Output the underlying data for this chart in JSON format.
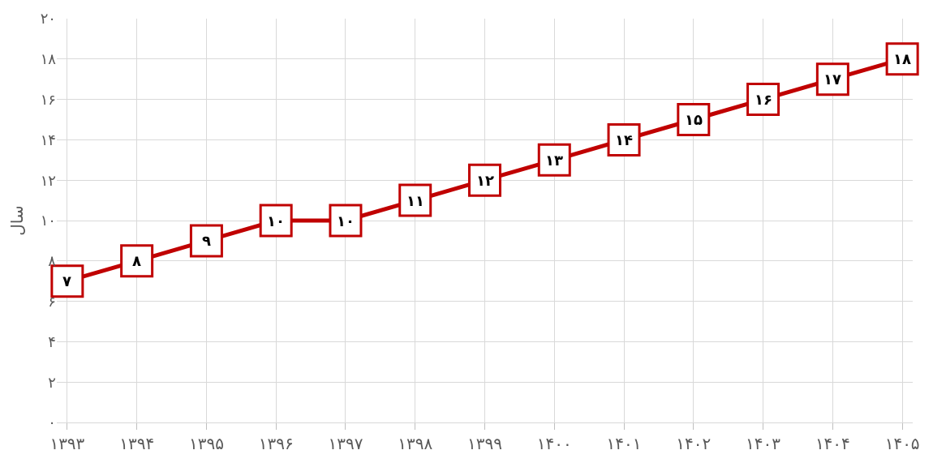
{
  "chart_data": {
    "type": "line",
    "ylabel": "سال",
    "categories": [
      "۱۳۹۳",
      "۱۳۹۴",
      "۱۳۹۵",
      "۱۳۹۶",
      "۱۳۹۷",
      "۱۳۹۸",
      "۱۳۹۹",
      "۱۴۰۰",
      "۱۴۰۱",
      "۱۴۰۲",
      "۱۴۰۳",
      "۱۴۰۴",
      "۱۴۰۵"
    ],
    "series": [
      {
        "color": "#c00000",
        "values": [
          7,
          8,
          9,
          10,
          10,
          11,
          12,
          13,
          14,
          15,
          16,
          17,
          18
        ],
        "value_labels": [
          "۷",
          "۸",
          "۹",
          "۱۰",
          "۱۰",
          "۱۱",
          "۱۲",
          "۱۳",
          "۱۴",
          "۱۵",
          "۱۶",
          "۱۷",
          "۱۸"
        ]
      }
    ],
    "ylim": [
      0,
      20
    ],
    "yticks": [
      {
        "value": 0,
        "label": "۰"
      },
      {
        "value": 2,
        "label": "۲"
      },
      {
        "value": 4,
        "label": "۴"
      },
      {
        "value": 6,
        "label": "۶"
      },
      {
        "value": 8,
        "label": "۸"
      },
      {
        "value": 10,
        "label": "۱۰"
      },
      {
        "value": 12,
        "label": "۱۲"
      },
      {
        "value": 14,
        "label": "۱۴"
      },
      {
        "value": 16,
        "label": "۱۶"
      },
      {
        "value": 18,
        "label": "۱۸"
      },
      {
        "value": 20,
        "label": "۲۰"
      }
    ],
    "grid": true,
    "marker": "square",
    "line_style": "solid"
  }
}
